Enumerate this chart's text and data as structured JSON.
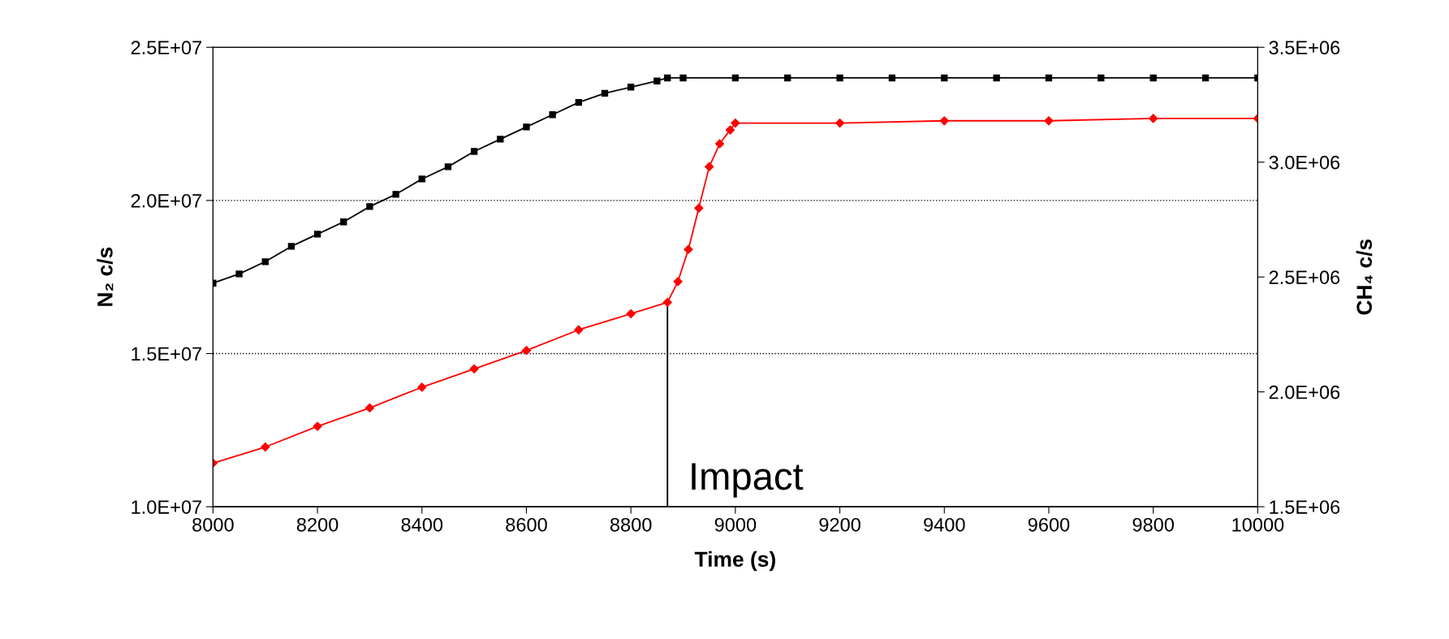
{
  "chart_data": {
    "type": "line",
    "xlabel": "Time (s)",
    "ylabel": "N₂ c/s",
    "y2label": "CH₄ c/s",
    "xlim": [
      8000,
      10000
    ],
    "xticks": [
      8000,
      8200,
      8400,
      8600,
      8800,
      9000,
      9200,
      9400,
      9600,
      9800,
      10000
    ],
    "ylim": [
      10000000,
      25000000
    ],
    "yticks": [
      {
        "value": 10000000,
        "label": "1.0E+07"
      },
      {
        "value": 15000000,
        "label": "1.5E+07"
      },
      {
        "value": 20000000,
        "label": "2.0E+07"
      },
      {
        "value": 25000000,
        "label": "2.5E+07"
      }
    ],
    "y2lim": [
      1500000,
      3500000
    ],
    "y2ticks": [
      {
        "value": 1500000,
        "label": "1.5E+06"
      },
      {
        "value": 2000000,
        "label": "2.0E+06"
      },
      {
        "value": 2500000,
        "label": "2.5E+06"
      },
      {
        "value": 3000000,
        "label": "3.0E+06"
      },
      {
        "value": 3500000,
        "label": "3.5E+06"
      }
    ],
    "grid": "y",
    "series": [
      {
        "color": "#000000",
        "marker": "square",
        "x": [
          8000,
          8050,
          8100,
          8150,
          8200,
          8250,
          8300,
          8350,
          8400,
          8450,
          8500,
          8550,
          8600,
          8650,
          8700,
          8750,
          8800,
          8850,
          8870,
          8900,
          9000,
          9100,
          9200,
          9300,
          9400,
          9500,
          9600,
          9700,
          9800,
          9900,
          10000
        ],
        "values": [
          17300000,
          17600000,
          18000000,
          18500000,
          18900000,
          19300000,
          19800000,
          20200000,
          20700000,
          21100000,
          21600000,
          22000000,
          22400000,
          22800000,
          23200000,
          23500000,
          23700000,
          23900000,
          24000000,
          24000000,
          24000000,
          24000000,
          24000000,
          24000000,
          24000000,
          24000000,
          24000000,
          24000000,
          24000000,
          24000000,
          24000000
        ]
      },
      {
        "color": "#ff0000",
        "marker": "diamond",
        "axis": "y2",
        "x": [
          8000,
          8100,
          8200,
          8300,
          8400,
          8500,
          8600,
          8700,
          8800,
          8870,
          8890,
          8910,
          8930,
          8950,
          8970,
          8990,
          9000,
          9200,
          9400,
          9600,
          9800,
          10000
        ],
        "values": [
          1690000,
          1760000,
          1850000,
          1930000,
          2020000,
          2100000,
          2180000,
          2270000,
          2340000,
          2390000,
          2480000,
          2620000,
          2800000,
          2980000,
          3080000,
          3140000,
          3170000,
          3170000,
          3180000,
          3180000,
          3190000,
          3190000
        ]
      }
    ],
    "ref_lines": [
      {
        "axis": "x",
        "value": 8870,
        "label": "Impact",
        "color": "#000000"
      }
    ]
  }
}
